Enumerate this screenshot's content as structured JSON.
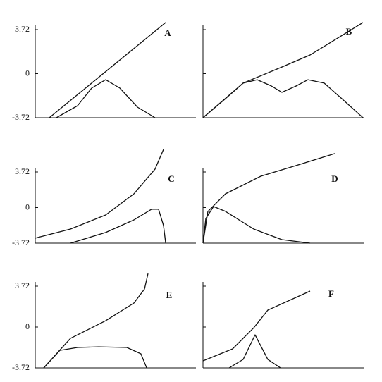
{
  "chart_data": [
    {
      "type": "line",
      "label": "A",
      "xlim": [
        0,
        12
      ],
      "ylim": [
        -3.72,
        3.72
      ],
      "yticks": [
        3.72,
        0,
        -3.72
      ],
      "tick_labels": true,
      "series": [
        {
          "color": "#111",
          "x": [
            1.05,
            9.74
          ],
          "values": [
            -3.72,
            4.32
          ]
        },
        {
          "color": "#111",
          "x": [
            1.58,
            3.16,
            4.21,
            5.26,
            6.32,
            7.63,
            8.95
          ],
          "values": [
            -3.72,
            -2.71,
            -1.22,
            -0.51,
            -1.22,
            -2.83,
            -3.72
          ]
        }
      ]
    },
    {
      "type": "line",
      "label": "B",
      "xlim": [
        0,
        12
      ],
      "ylim": [
        -3.72,
        3.72
      ],
      "yticks": [
        3.72,
        0,
        -3.72
      ],
      "tick_labels": false,
      "series": [
        {
          "color": "#111",
          "x": [
            0,
            3,
            5.89,
            8,
            10.1,
            11.95
          ],
          "values": [
            -3.72,
            -0.8,
            0.56,
            1.58,
            3.03,
            4.32
          ]
        },
        {
          "color": "#111",
          "x": [
            0,
            1.68,
            3,
            4.05,
            5.11,
            5.89,
            6.95,
            7.84,
            9.05,
            10.37,
            11.95
          ],
          "values": [
            -3.72,
            -2.11,
            -0.8,
            -0.51,
            -1.04,
            -1.58,
            -1.04,
            -0.51,
            -0.8,
            -2.11,
            -3.72
          ]
        }
      ]
    },
    {
      "type": "line",
      "label": "C",
      "xlim": [
        0,
        12
      ],
      "ylim": [
        -3.72,
        3.72
      ],
      "yticks": [
        3.72,
        0,
        -3.72
      ],
      "tick_labels": true,
      "series": [
        {
          "color": "#111",
          "x": [
            0,
            2.63,
            5.26,
            7.37,
            8.95,
            9.58
          ],
          "values": [
            -3.2,
            -2.25,
            -0.77,
            1.44,
            4.02,
            6.08
          ]
        },
        {
          "color": "#111",
          "x": [
            2.63,
            5.26,
            7.37,
            8.68,
            9.21,
            9.58,
            9.74
          ],
          "values": [
            -3.72,
            -2.61,
            -1.29,
            -0.18,
            -0.18,
            -1.88,
            -3.72
          ]
        }
      ]
    },
    {
      "type": "line",
      "label": "D",
      "xlim": [
        0,
        12
      ],
      "ylim": [
        -3.72,
        3.72
      ],
      "yticks": [
        3.72,
        0,
        -3.72
      ],
      "tick_labels": false,
      "series": [
        {
          "color": "#111",
          "x": [
            0,
            0.37,
            1.68,
            4.32,
            6.95,
            9.84
          ],
          "values": [
            -3.72,
            -0.4,
            1.44,
            3.28,
            4.39,
            5.64
          ]
        },
        {
          "color": "#111",
          "x": [
            0,
            0.21,
            0.79,
            1.68,
            3.79,
            5.89,
            8
          ],
          "values": [
            -3.72,
            -1.14,
            0.11,
            -0.4,
            -2.25,
            -3.35,
            -3.72
          ]
        }
      ]
    },
    {
      "type": "line",
      "label": "E",
      "xlim": [
        0,
        12
      ],
      "ylim": [
        -3.72,
        3.72
      ],
      "yticks": [
        3.72,
        0,
        -3.72
      ],
      "tick_labels": true,
      "series": [
        {
          "color": "#111",
          "x": [
            0.63,
            2.63,
            5.26,
            7.37,
            8.16,
            8.42
          ],
          "values": [
            -3.72,
            -1.03,
            0.57,
            2.18,
            3.46,
            4.87
          ]
        },
        {
          "color": "#111",
          "x": [
            0.63,
            1.84,
            3.16,
            4.74,
            6.84,
            7.89,
            8.32
          ],
          "values": [
            -3.72,
            -2.12,
            -1.86,
            -1.8,
            -1.86,
            -2.44,
            -3.72
          ]
        }
      ]
    },
    {
      "type": "line",
      "label": "F",
      "xlim": [
        0,
        12
      ],
      "ylim": [
        -3.72,
        3.72
      ],
      "yticks": [
        3.72,
        0,
        -3.72
      ],
      "tick_labels": false,
      "series": [
        {
          "color": "#111",
          "x": [
            0,
            2.21,
            3.79,
            4.84,
            8
          ],
          "values": [
            -3.08,
            -1.99,
            -0.07,
            1.54,
            3.27
          ]
        },
        {
          "color": "#111",
          "x": [
            1.95,
            3,
            3.89,
            4.84,
            5.79
          ],
          "values": [
            -3.72,
            -2.95,
            -0.71,
            -2.95,
            -3.72
          ]
        }
      ]
    }
  ]
}
